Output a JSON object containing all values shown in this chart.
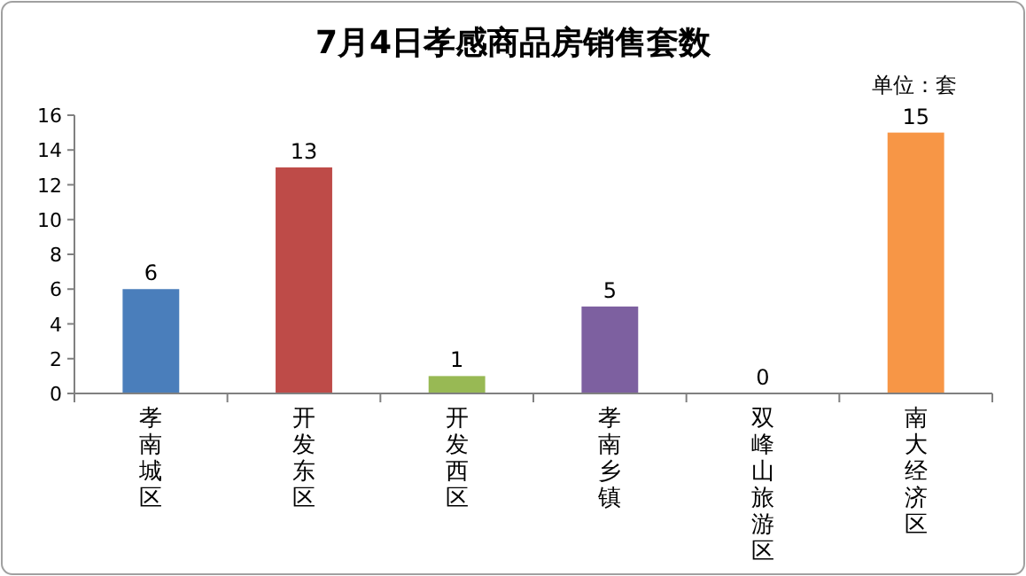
{
  "chart_data": {
    "type": "bar",
    "title": "7月4日孝感商品房销售套数",
    "annotations": [
      "单位：套"
    ],
    "categories": [
      "孝南城区",
      "开发东区",
      "开发西区",
      "孝南乡镇",
      "双峰山旅游区",
      "南大经济区"
    ],
    "values": [
      6,
      13,
      1,
      5,
      0,
      15
    ],
    "colors": [
      "#4a7ebb",
      "#be4b48",
      "#98b954",
      "#7d60a0",
      "#4bacc6",
      "#f79646"
    ],
    "ylim": [
      0,
      16
    ],
    "yticks": [
      0,
      2,
      4,
      6,
      8,
      10,
      12,
      14,
      16
    ],
    "data_labels": true,
    "grid": false
  }
}
